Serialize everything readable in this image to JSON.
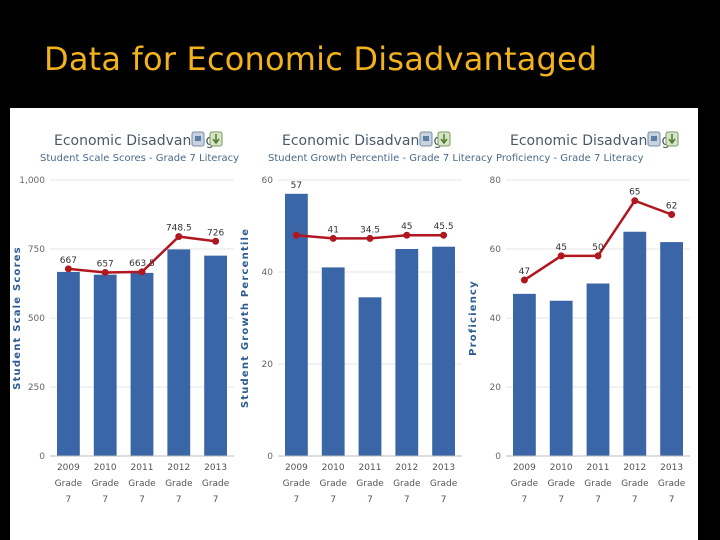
{
  "slide": {
    "title": "Data for Economic Disadvantaged"
  },
  "colors": {
    "title": "#f2b21b",
    "bar": "#3a66a7",
    "line": "#b0171f",
    "background": "#000000"
  },
  "icons": [
    "print-icon",
    "download-icon"
  ],
  "chart_data": [
    {
      "type": "bar",
      "title": "Economic Disadvantage",
      "subtitle": "Student Scale Scores - Grade 7 Literacy",
      "ylabel": "Student Scale Scores",
      "categories": [
        [
          "2009",
          "Grade",
          "7"
        ],
        [
          "2010",
          "Grade",
          "7"
        ],
        [
          "2011",
          "Grade",
          "7"
        ],
        [
          "2012",
          "Grade",
          "7"
        ],
        [
          "2013",
          "Grade",
          "7"
        ]
      ],
      "yticks": [
        "0",
        "250",
        "500",
        "750",
        "1,000"
      ],
      "ylim": [
        0,
        1000
      ],
      "values": [
        667,
        657,
        663.5,
        748.5,
        726
      ],
      "value_labels": [
        "667",
        "657",
        "663.5",
        "748.5",
        "726"
      ],
      "line_values": [
        678,
        665,
        667,
        795,
        778
      ]
    },
    {
      "type": "bar",
      "title": "Economic Disadvantage",
      "subtitle": "Student Growth Percentile - Grade 7 Literacy",
      "ylabel": "Student Growth Percentile",
      "categories": [
        [
          "2009",
          "Grade",
          "7"
        ],
        [
          "2010",
          "Grade",
          "7"
        ],
        [
          "2011",
          "Grade",
          "7"
        ],
        [
          "2012",
          "Grade",
          "7"
        ],
        [
          "2013",
          "Grade",
          "7"
        ]
      ],
      "yticks": [
        "0",
        "20",
        "40",
        "60"
      ],
      "ylim": [
        0,
        60
      ],
      "values": [
        57,
        41,
        34.5,
        45,
        45.5
      ],
      "value_labels": [
        "57",
        "41",
        "34.5",
        "45",
        "45.5"
      ],
      "line_values": [
        48,
        47.3,
        47.3,
        48,
        48
      ]
    },
    {
      "type": "bar",
      "title": "Economic Disadvantage",
      "subtitle": "Proficiency - Grade 7 Literacy",
      "ylabel": "Proficiency",
      "categories": [
        [
          "2009",
          "Grade",
          "7"
        ],
        [
          "2010",
          "Grade",
          "7"
        ],
        [
          "2011",
          "Grade",
          "7"
        ],
        [
          "2012",
          "Grade",
          "7"
        ],
        [
          "2013",
          "Grade",
          "7"
        ]
      ],
      "yticks": [
        "0",
        "20",
        "40",
        "60",
        "80"
      ],
      "ylim": [
        0,
        80
      ],
      "values": [
        47,
        45,
        50,
        65,
        62
      ],
      "value_labels": [
        "47",
        "45",
        "50",
        "65",
        "62"
      ],
      "line_values": [
        51,
        58,
        58,
        74,
        70
      ]
    }
  ]
}
